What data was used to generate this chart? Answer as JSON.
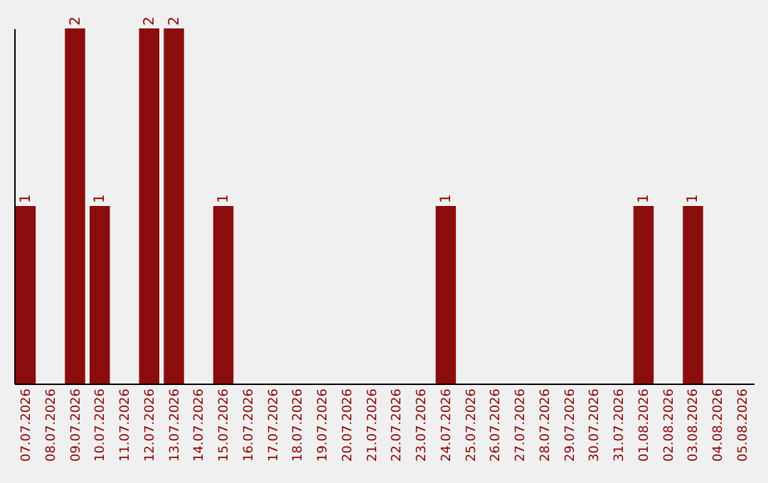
{
  "chart_data": {
    "type": "bar",
    "categories": [
      "07.07.2026",
      "08.07.2026",
      "09.07.2026",
      "10.07.2026",
      "11.07.2026",
      "12.07.2026",
      "13.07.2026",
      "14.07.2026",
      "15.07.2026",
      "16.07.2026",
      "17.07.2026",
      "18.07.2026",
      "19.07.2026",
      "20.07.2026",
      "21.07.2026",
      "22.07.2026",
      "23.07.2026",
      "24.07.2026",
      "25.07.2026",
      "26.07.2026",
      "27.07.2026",
      "28.07.2026",
      "29.07.2026",
      "30.07.2026",
      "31.07.2026",
      "01.08.2026",
      "02.08.2026",
      "03.08.2026",
      "04.08.2026",
      "05.08.2026"
    ],
    "values": [
      1,
      0,
      2,
      1,
      0,
      2,
      2,
      0,
      1,
      0,
      0,
      0,
      0,
      0,
      0,
      0,
      0,
      1,
      0,
      0,
      0,
      0,
      0,
      0,
      0,
      1,
      0,
      1,
      0,
      0
    ],
    "value_labels": [
      "1",
      null,
      "2",
      "1",
      null,
      "2",
      "2",
      null,
      "1",
      null,
      null,
      null,
      null,
      null,
      null,
      null,
      null,
      "1",
      null,
      null,
      null,
      null,
      null,
      null,
      null,
      "1",
      null,
      "1",
      null,
      null
    ],
    "color": "#8b0d0d",
    "ylim": [
      0,
      2
    ]
  }
}
